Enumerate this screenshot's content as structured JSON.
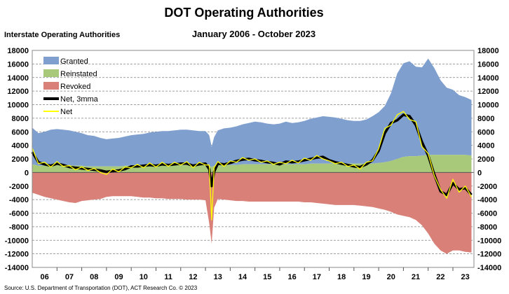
{
  "chart_data": {
    "type": "area",
    "title": "DOT Operating Authorities",
    "subtitle_left": "Interstate Operating Authorities",
    "subtitle_right": "January 2006 - October 2023",
    "source": "Source: U.S. Department of Transportation (DOT), ACT Research Co. © 2023",
    "ylim": [
      -14000,
      18000
    ],
    "y_ticks": [
      "18000",
      "16000",
      "14000",
      "12000",
      "10000",
      "8000",
      "6000",
      "4000",
      "2000",
      "0",
      "-2000",
      "-4000",
      "-6000",
      "-8000",
      "-10000",
      "-12000",
      "-14000"
    ],
    "x_tick_labels": [
      "06",
      "07",
      "08",
      "09",
      "10",
      "11",
      "12",
      "13",
      "14",
      "15",
      "16",
      "17",
      "18",
      "19",
      "20",
      "21",
      "22",
      "23"
    ],
    "x_range_years": [
      2006.0,
      2023.85
    ],
    "colors": {
      "granted": "#7f9fcf",
      "reinstated": "#a9c97a",
      "revoked": "#d98079",
      "net3mma": "#000000",
      "net": "#ffff00",
      "grid": "#808080"
    },
    "legend": [
      {
        "label": "Granted",
        "kind": "area",
        "color_key": "granted"
      },
      {
        "label": "Reinstated",
        "kind": "area",
        "color_key": "reinstated"
      },
      {
        "label": "Revoked",
        "kind": "area",
        "color_key": "revoked"
      },
      {
        "label": "Net, 3mma",
        "kind": "line",
        "color_key": "net3mma"
      },
      {
        "label": "Net",
        "kind": "line",
        "color_key": "net"
      }
    ],
    "x": [
      2006.0,
      2006.25,
      2006.5,
      2006.75,
      2007.0,
      2007.25,
      2007.5,
      2007.75,
      2008.0,
      2008.25,
      2008.5,
      2008.75,
      2009.0,
      2009.25,
      2009.5,
      2009.75,
      2010.0,
      2010.25,
      2010.5,
      2010.75,
      2011.0,
      2011.25,
      2011.5,
      2011.75,
      2012.0,
      2012.25,
      2012.5,
      2012.75,
      2013.0,
      2013.15,
      2013.25,
      2013.35,
      2013.5,
      2013.75,
      2014.0,
      2014.25,
      2014.5,
      2014.75,
      2015.0,
      2015.25,
      2015.5,
      2015.75,
      2016.0,
      2016.25,
      2016.5,
      2016.75,
      2017.0,
      2017.25,
      2017.5,
      2017.75,
      2018.0,
      2018.25,
      2018.5,
      2018.75,
      2019.0,
      2019.25,
      2019.5,
      2019.75,
      2020.0,
      2020.25,
      2020.5,
      2020.75,
      2021.0,
      2021.25,
      2021.5,
      2021.75,
      2022.0,
      2022.25,
      2022.5,
      2022.75,
      2023.0,
      2023.25,
      2023.5,
      2023.75
    ],
    "series": [
      {
        "name": "Granted",
        "key": "granted",
        "values": [
          5400,
          4800,
          5000,
          5200,
          5300,
          5200,
          5100,
          5000,
          4800,
          4600,
          4500,
          4200,
          4000,
          4100,
          4200,
          4300,
          4500,
          4600,
          4700,
          4800,
          4900,
          5000,
          5000,
          5100,
          5200,
          5200,
          5100,
          5000,
          5000,
          4500,
          3000,
          4200,
          5100,
          5400,
          5500,
          5700,
          5900,
          6100,
          6300,
          6200,
          6000,
          5900,
          6000,
          6300,
          6100,
          6200,
          6400,
          6600,
          6800,
          7000,
          6900,
          6800,
          6600,
          6400,
          6300,
          6300,
          6500,
          7000,
          7500,
          8300,
          10000,
          12600,
          13800,
          14000,
          13200,
          13000,
          14200,
          12800,
          11000,
          9900,
          9600,
          8800,
          8500,
          8200
        ]
      },
      {
        "name": "Reinstated",
        "key": "reinstated",
        "values": [
          1200,
          1000,
          1000,
          1100,
          1100,
          1100,
          1100,
          1000,
          1000,
          900,
          900,
          900,
          900,
          900,
          900,
          1000,
          1000,
          1000,
          1000,
          1100,
          1100,
          1100,
          1100,
          1100,
          1100,
          1100,
          1100,
          1100,
          1100,
          1000,
          800,
          1000,
          1100,
          1100,
          1100,
          1100,
          1200,
          1200,
          1200,
          1200,
          1200,
          1200,
          1200,
          1200,
          1200,
          1200,
          1200,
          1300,
          1300,
          1300,
          1300,
          1300,
          1300,
          1300,
          1300,
          1300,
          1300,
          1300,
          1400,
          1500,
          1700,
          2000,
          2300,
          2400,
          2400,
          2500,
          2600,
          2600,
          2600,
          2600,
          2600,
          2600,
          2600,
          2500
        ]
      },
      {
        "name": "Revoked",
        "key": "revoked",
        "values": [
          -3000,
          -3300,
          -3600,
          -3800,
          -4000,
          -4200,
          -4400,
          -4500,
          -4200,
          -4100,
          -4000,
          -3900,
          -3600,
          -3500,
          -3500,
          -3500,
          -3500,
          -3600,
          -3700,
          -3700,
          -3800,
          -3800,
          -3900,
          -3900,
          -3900,
          -4000,
          -4000,
          -4000,
          -4100,
          -7500,
          -10500,
          -5200,
          -3900,
          -4000,
          -4100,
          -4200,
          -4200,
          -4300,
          -4300,
          -4300,
          -4300,
          -4300,
          -4300,
          -4300,
          -4300,
          -4300,
          -4400,
          -4400,
          -4500,
          -4600,
          -4700,
          -4800,
          -4800,
          -4800,
          -4800,
          -4900,
          -5000,
          -5100,
          -5300,
          -5500,
          -5800,
          -6200,
          -6400,
          -6600,
          -7000,
          -7800,
          -9000,
          -10500,
          -11500,
          -12000,
          -11500,
          -11500,
          -11700,
          -11800
        ]
      },
      {
        "name": "Net, 3mma",
        "key": "net3mma",
        "values": [
          3000,
          1500,
          1200,
          1000,
          1300,
          1100,
          800,
          700,
          600,
          500,
          400,
          300,
          100,
          200,
          300,
          500,
          900,
          900,
          1000,
          1100,
          1000,
          1200,
          1100,
          1200,
          1300,
          1300,
          1000,
          1200,
          1300,
          500,
          -2000,
          100,
          1300,
          1200,
          1400,
          1700,
          1900,
          2000,
          1800,
          1700,
          1500,
          1400,
          1200,
          1600,
          1500,
          1600,
          1800,
          2000,
          2200,
          2300,
          1800,
          1500,
          1300,
          1100,
          900,
          800,
          1200,
          1800,
          3200,
          5800,
          7300,
          7700,
          8500,
          8300,
          7000,
          4500,
          2500,
          -300,
          -2800,
          -3300,
          -1600,
          -2500,
          -2300,
          -3300
        ]
      },
      {
        "name": "Net",
        "key": "net",
        "values": [
          3600,
          1300,
          1500,
          800,
          1600,
          900,
          1000,
          400,
          800,
          300,
          600,
          0,
          -300,
          500,
          100,
          800,
          700,
          1200,
          700,
          1400,
          800,
          1500,
          900,
          1500,
          1100,
          1600,
          700,
          1500,
          1100,
          1100,
          -7000,
          700,
          1600,
          900,
          1700,
          1500,
          2200,
          1800,
          2000,
          1500,
          1700,
          1200,
          1500,
          1300,
          1800,
          1400,
          2100,
          1800,
          2500,
          2000,
          1700,
          1300,
          1500,
          900,
          1100,
          500,
          1500,
          1700,
          3500,
          6500,
          7000,
          8500,
          9000,
          7800,
          7500,
          3800,
          2800,
          -500,
          -2500,
          -3800,
          -1000,
          -2900,
          -2000,
          -3600
        ]
      }
    ]
  }
}
